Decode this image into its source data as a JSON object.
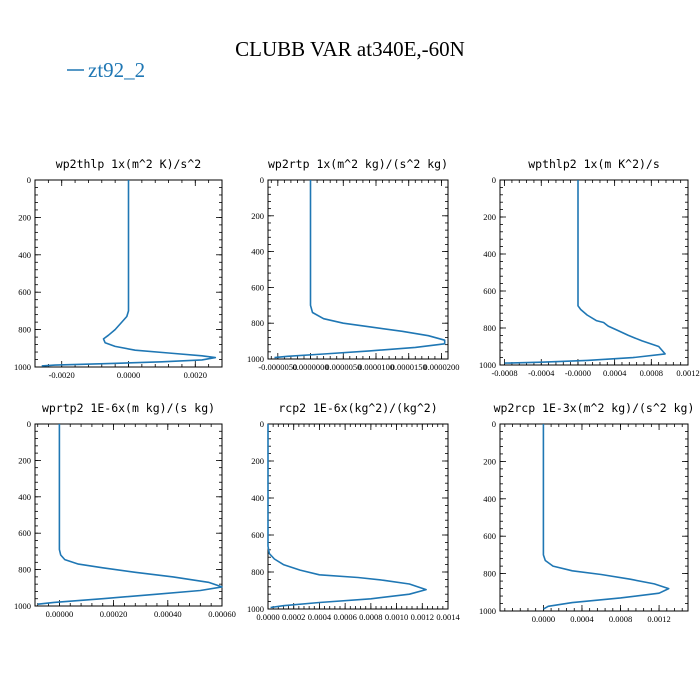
{
  "figure": {
    "title": "CLUBB VAR at340E,-60N",
    "legend": [
      {
        "name": "zt92_2",
        "color": "#1f77b4"
      }
    ]
  },
  "chart_data": [
    {
      "type": "line",
      "title": "wp2thlp   1x(m^2 K)/s^2",
      "xlim": [
        -0.0028,
        0.0028
      ],
      "ylim": [
        1000,
        0
      ],
      "xticks": [
        -0.002,
        0.0,
        0.002
      ],
      "xtick_labels": [
        "-0.0020",
        "0.0000",
        "0.0020"
      ],
      "yticks": [
        0,
        200,
        400,
        600,
        800,
        1000
      ],
      "ytick_labels": [
        "0",
        "200",
        "400",
        "600",
        "800",
        "1000"
      ],
      "series": [
        {
          "name": "zt92_2",
          "x": [
            0.0,
            0.0,
            0.0,
            -5e-05,
            -0.0002,
            -0.0004,
            -0.0006,
            -0.00075,
            -0.0007,
            -0.0004,
            0.0002,
            0.0012,
            0.0022,
            0.0026,
            0.0022,
            0.001,
            -0.0006,
            -0.0022,
            -0.0026
          ],
          "y": [
            0,
            400,
            700,
            730,
            760,
            800,
            830,
            850,
            870,
            890,
            910,
            925,
            940,
            950,
            962,
            972,
            982,
            990,
            994
          ]
        }
      ]
    },
    {
      "type": "line",
      "title": "wp2rtp   1x(m^2 kg)/(s^2 kg)",
      "xlim": [
        -6.5e-06,
        2.1e-05
      ],
      "ylim": [
        1000,
        0
      ],
      "xticks": [
        -5e-06,
        0.0,
        5e-06,
        1e-05,
        1.5e-05,
        2e-05
      ],
      "xtick_labels": [
        "-0.0000050",
        "0.0000000",
        "0.0000050",
        "0.0000100",
        "0.0000150",
        "0.0000200"
      ],
      "yticks": [
        0,
        200,
        400,
        600,
        800,
        1000
      ],
      "ytick_labels": [
        "0",
        "200",
        "400",
        "600",
        "800",
        "1000"
      ],
      "series": [
        {
          "name": "zt92_2",
          "x": [
            0.0,
            0.0,
            0.0,
            3e-07,
            2e-06,
            5e-06,
            9e-06,
            1.4e-05,
            1.8e-05,
            2.05e-05,
            2.05e-05,
            1.6e-05,
            9e-06,
            2e-06,
            -3.5e-06,
            -5.5e-06
          ],
          "y": [
            0,
            400,
            700,
            740,
            775,
            800,
            820,
            845,
            870,
            895,
            915,
            935,
            955,
            972,
            985,
            992
          ]
        }
      ]
    },
    {
      "type": "line",
      "title": "wpthlp2   1x(m K^2)/s",
      "xlim": [
        -0.00085,
        0.0012
      ],
      "ylim": [
        1000,
        0
      ],
      "xticks": [
        -0.0008,
        -0.0004,
        0.0,
        0.0004,
        0.0008,
        0.0012
      ],
      "xtick_labels": [
        "-0.0008",
        "-0.0004",
        "-0.0000",
        "0.0004",
        "0.0008",
        "0.0012"
      ],
      "yticks": [
        0,
        200,
        400,
        600,
        800,
        1000
      ],
      "ytick_labels": [
        "0",
        "200",
        "400",
        "600",
        "800",
        "1000"
      ],
      "series": [
        {
          "name": "zt92_2",
          "x": [
            0.0,
            0.0,
            0.0,
            3e-05,
            0.0001,
            0.0002,
            0.00028,
            0.00033,
            0.00042,
            0.00055,
            0.0007,
            0.00088,
            0.00095,
            0.0006,
            0.0001,
            -0.0004,
            -0.0008
          ],
          "y": [
            0,
            400,
            680,
            700,
            730,
            760,
            770,
            790,
            810,
            840,
            870,
            900,
            940,
            960,
            975,
            985,
            990
          ]
        }
      ]
    },
    {
      "type": "line",
      "title": "wprtp2   1E-6x(m kg)/(s kg)",
      "xlim": [
        -9e-05,
        0.0006
      ],
      "ylim": [
        1000,
        0
      ],
      "xticks": [
        0.0,
        0.0002,
        0.0004,
        0.0006
      ],
      "xtick_labels": [
        "0.00000",
        "0.00020",
        "0.00040",
        "0.00060"
      ],
      "yticks": [
        0,
        200,
        400,
        600,
        800,
        1000
      ],
      "ytick_labels": [
        "0",
        "200",
        "400",
        "600",
        "800",
        "1000"
      ],
      "series": [
        {
          "name": "zt92_2",
          "x": [
            0.0,
            0.0,
            0.0,
            5e-06,
            2e-05,
            7e-05,
            0.00016,
            0.00028,
            0.00042,
            0.00055,
            0.0006,
            0.00052,
            0.00036,
            0.00016,
            -2e-05,
            -8e-05
          ],
          "y": [
            0,
            400,
            690,
            720,
            745,
            770,
            790,
            815,
            840,
            870,
            895,
            915,
            935,
            960,
            980,
            990
          ]
        }
      ]
    },
    {
      "type": "line",
      "title": "rcp2   1E-6x(kg^2)/(kg^2)",
      "xlim": [
        0.0,
        0.0014
      ],
      "ylim": [
        1000,
        0
      ],
      "xticks": [
        0.0,
        0.0002,
        0.0004,
        0.0006,
        0.0008,
        0.001,
        0.0012,
        0.0014
      ],
      "xtick_labels": [
        "0.0000",
        "0.0002",
        "0.0004",
        "0.0006",
        "0.0008",
        "0.0010",
        "0.0012",
        "0.0014"
      ],
      "yticks": [
        0,
        200,
        400,
        600,
        800,
        1000
      ],
      "ytick_labels": [
        "0",
        "200",
        "400",
        "600",
        "800",
        "1000"
      ],
      "series": [
        {
          "name": "zt92_2",
          "x": [
            0.0,
            0.0,
            1e-05,
            5e-05,
            0.00012,
            0.00025,
            0.0004,
            0.0007,
            0.0009,
            0.0011,
            0.00123,
            0.0011,
            0.0008,
            0.0004,
            0.00012,
            2e-05
          ],
          "y": [
            0,
            660,
            700,
            730,
            760,
            790,
            815,
            830,
            845,
            865,
            895,
            920,
            945,
            965,
            982,
            992
          ]
        }
      ]
    },
    {
      "type": "line",
      "title": "wp2rcp   1E-3x(m^2 kg)/(s^2 kg)",
      "xlim": [
        -0.00045,
        0.0015
      ],
      "ylim": [
        1000,
        0
      ],
      "xticks": [
        0.0,
        0.0004,
        0.0008,
        0.0012
      ],
      "xtick_labels": [
        "0.0000",
        "0.0004",
        "0.0008",
        "0.0012"
      ],
      "yticks": [
        0,
        200,
        400,
        600,
        800,
        1000
      ],
      "ytick_labels": [
        "0",
        "200",
        "400",
        "600",
        "800",
        "1000"
      ],
      "series": [
        {
          "name": "zt92_2",
          "x": [
            0.0,
            0.0,
            0.0,
            2e-05,
            0.0001,
            0.0003,
            0.0006,
            0.0009,
            0.00115,
            0.0013,
            0.0012,
            0.0008,
            0.0003,
            5e-05,
            0.0
          ],
          "y": [
            0,
            400,
            700,
            730,
            760,
            785,
            805,
            830,
            855,
            880,
            905,
            930,
            955,
            975,
            990
          ]
        }
      ]
    }
  ]
}
